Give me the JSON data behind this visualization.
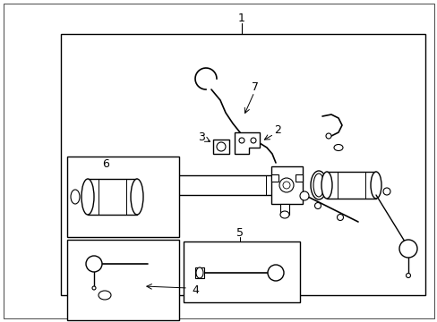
{
  "background_color": "#ffffff",
  "line_color": "#000000",
  "fig_width": 4.89,
  "fig_height": 3.6,
  "dpi": 100,
  "font_size": 9
}
